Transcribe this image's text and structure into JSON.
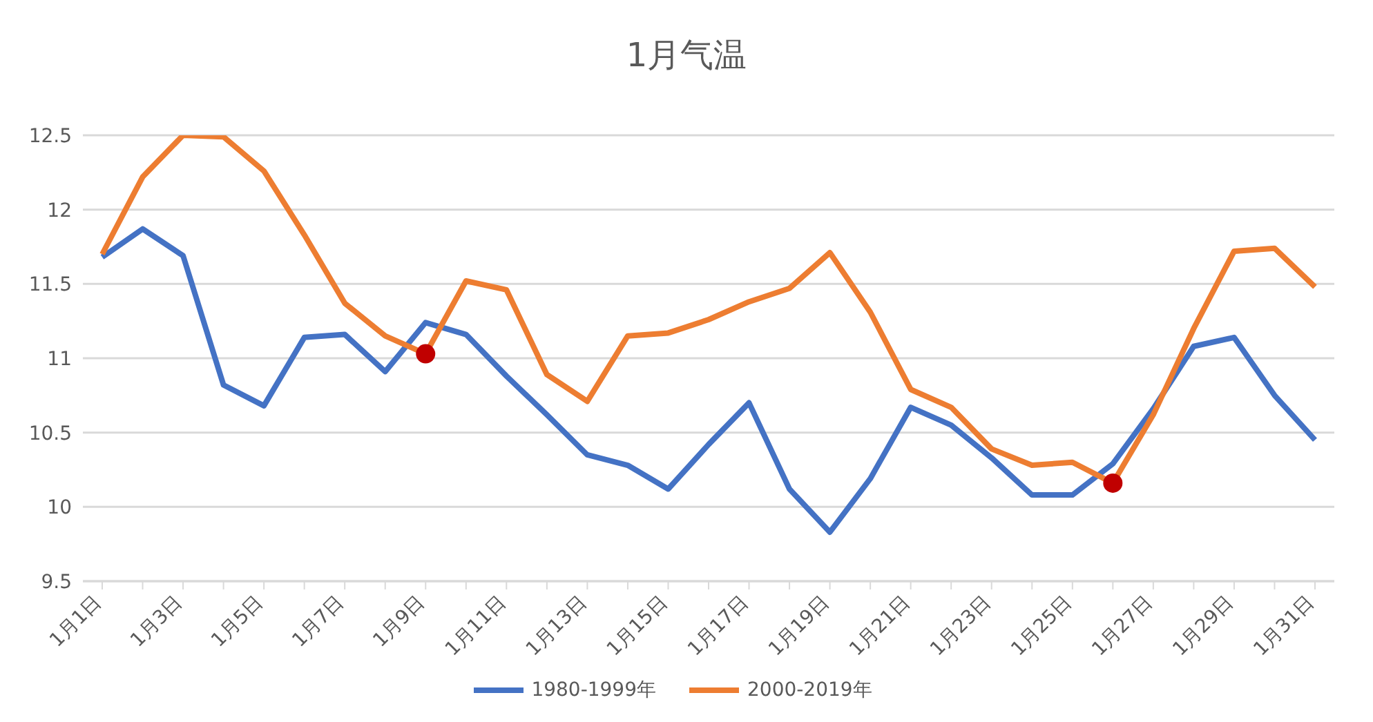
{
  "chart_data": {
    "type": "line",
    "title": "1月气温",
    "categories": [
      "1月1日",
      null,
      "1月3日",
      null,
      "1月5日",
      null,
      "1月7日",
      null,
      "1月9日",
      null,
      "1月11日",
      null,
      "1月13日",
      null,
      "1月15日",
      null,
      "1月17日",
      null,
      "1月19日",
      null,
      "1月21日",
      null,
      "1月23日",
      null,
      "1月25日",
      null,
      "1月27日",
      null,
      "1月29日",
      null,
      "1月31日"
    ],
    "series": [
      {
        "name": "1980-1999年",
        "color": "#4472c4",
        "marker": "none",
        "values": [
          11.68,
          11.87,
          11.69,
          10.82,
          10.68,
          11.14,
          11.16,
          10.91,
          11.24,
          11.16,
          10.88,
          10.62,
          10.35,
          10.28,
          10.12,
          10.42,
          10.7,
          10.12,
          9.83,
          10.19,
          10.67,
          10.55,
          10.33,
          10.08,
          10.08,
          10.29,
          10.66,
          11.08,
          11.14,
          10.75,
          10.45
        ]
      },
      {
        "name": "2000-2019年",
        "color": "#ed7d31",
        "marker": "none",
        "values": [
          11.7,
          12.22,
          12.5,
          12.49,
          12.26,
          11.83,
          11.37,
          11.15,
          11.03,
          11.52,
          11.46,
          10.89,
          10.71,
          11.15,
          11.17,
          11.26,
          11.38,
          11.47,
          11.71,
          11.31,
          10.79,
          10.67,
          10.39,
          10.28,
          10.3,
          10.16,
          10.62,
          11.2,
          11.72,
          11.74,
          11.48
        ]
      },
      {
        "type": "scatter",
        "color": "#c00000",
        "marker": "circle",
        "values": [
          null,
          null,
          null,
          null,
          null,
          null,
          null,
          null,
          11.03,
          null,
          null,
          null,
          null,
          null,
          null,
          null,
          null,
          null,
          null,
          null,
          null,
          null,
          null,
          null,
          null,
          10.16,
          null,
          null,
          null,
          null,
          null
        ]
      }
    ],
    "ylim": [
      9.5,
      12.5
    ],
    "yticks": [
      9.5,
      10,
      10.5,
      11,
      11.5,
      12,
      12.5
    ],
    "grid": "y",
    "legend": "bottom",
    "line_style": "solid"
  }
}
